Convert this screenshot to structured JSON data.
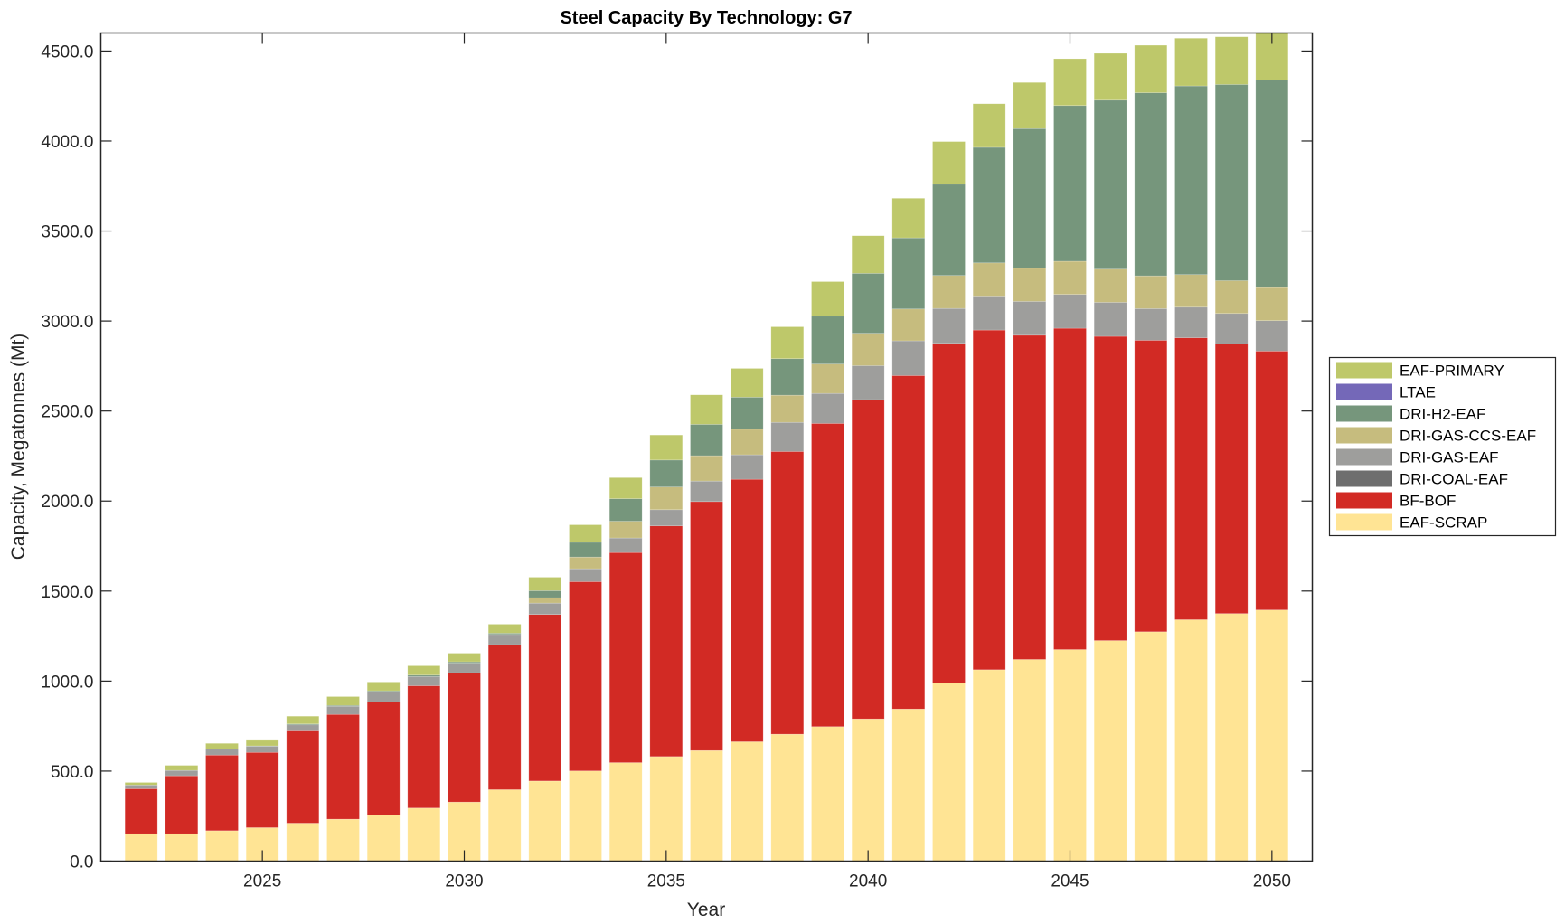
{
  "chart_data": {
    "type": "bar",
    "stacked": true,
    "title": "Steel Capacity By Technology: G7",
    "xlabel": "Year",
    "ylabel": "Capacity, Megatonnes (Mt)",
    "xlim": [
      2021,
      2051
    ],
    "ylim": [
      0,
      4600
    ],
    "xticks": [
      2025,
      2030,
      2035,
      2040,
      2045,
      2050
    ],
    "xtick_labels": [
      "2025",
      "2030",
      "2035",
      "2040",
      "2045",
      "2050"
    ],
    "yticks": [
      0,
      500,
      1000,
      1500,
      2000,
      2500,
      3000,
      3500,
      4000,
      4500
    ],
    "ytick_labels": [
      "0.0",
      "500.0",
      "1000.0",
      "1500.0",
      "2000.0",
      "2500.0",
      "3000.0",
      "3500.0",
      "4000.0",
      "4500.0"
    ],
    "grid": false,
    "legend_position": "right-outside",
    "categories": [
      2022,
      2023,
      2024,
      2025,
      2026,
      2027,
      2028,
      2029,
      2030,
      2031,
      2032,
      2033,
      2034,
      2035,
      2036,
      2037,
      2038,
      2039,
      2040,
      2041,
      2042,
      2043,
      2044,
      2045,
      2046,
      2047,
      2048,
      2049,
      2050
    ],
    "series": [
      {
        "name": "EAF-SCRAP",
        "color": "#FFE494",
        "values": [
          152,
          152,
          169,
          186,
          211,
          233,
          255,
          295,
          328,
          397,
          445,
          501,
          547,
          581,
          614,
          663,
          705,
          747,
          790,
          845,
          989,
          1063,
          1120,
          1175,
          1225,
          1274,
          1341,
          1375,
          1395
        ]
      },
      {
        "name": "BF-BOF",
        "color": "#D22A24",
        "values": [
          250,
          322,
          420,
          418,
          512,
          582,
          629,
          679,
          718,
          805,
          925,
          1051,
          1167,
          1281,
          1383,
          1458,
          1570,
          1684,
          1773,
          1852,
          1887,
          1887,
          1801,
          1785,
          1690,
          1619,
          1566,
          1498,
          1438
        ]
      },
      {
        "name": "DRI-COAL-EAF",
        "color": "#6E6E6E",
        "values": [
          0,
          0,
          0,
          0,
          0,
          0,
          0,
          0,
          0,
          0,
          0,
          0,
          0,
          0,
          0,
          0,
          0,
          0,
          0,
          0,
          0,
          0,
          0,
          0,
          0,
          0,
          0,
          0,
          0
        ]
      },
      {
        "name": "DRI-GAS-EAF",
        "color": "#9E9E9C",
        "values": [
          21,
          30,
          34,
          34,
          34,
          45,
          57,
          51,
          54,
          57,
          63,
          72,
          81,
          90,
          114,
          136,
          162,
          167,
          189,
          193,
          194,
          189,
          188,
          188,
          189,
          176,
          170,
          169,
          169
        ]
      },
      {
        "name": "DRI-GAS-CCS-EAF",
        "color": "#C6BC7E",
        "values": [
          0,
          0,
          0,
          0,
          0,
          0,
          0,
          0,
          0,
          0,
          30,
          65,
          93,
          126,
          141,
          142,
          151,
          163,
          180,
          177,
          183,
          184,
          184,
          184,
          184,
          182,
          181,
          182,
          184
        ]
      },
      {
        "name": "DRI-H2-EAF",
        "color": "#76967C",
        "values": [
          0,
          0,
          0,
          2,
          5,
          5,
          5,
          8,
          7,
          7,
          39,
          82,
          125,
          150,
          174,
          178,
          203,
          266,
          333,
          395,
          507,
          642,
          776,
          865,
          939,
          1017,
          1048,
          1090,
          1152
        ]
      },
      {
        "name": "LTAE",
        "color": "#7468B8",
        "values": [
          0,
          0,
          0,
          0,
          0,
          0,
          0,
          0,
          0,
          0,
          0,
          0,
          0,
          0,
          0,
          0,
          0,
          0,
          0,
          0,
          0,
          0,
          0,
          0,
          0,
          0,
          0,
          0,
          0
        ]
      },
      {
        "name": "EAF-PRIMARY",
        "color": "#BEC86A",
        "values": [
          14,
          28,
          31,
          31,
          43,
          49,
          49,
          52,
          48,
          50,
          75,
          97,
          117,
          139,
          164,
          160,
          177,
          192,
          209,
          220,
          237,
          242,
          256,
          260,
          260,
          264,
          265,
          265,
          262
        ]
      }
    ],
    "legend": [
      {
        "label": "EAF-PRIMARY",
        "color": "#BEC86A"
      },
      {
        "label": "LTAE",
        "color": "#7468B8"
      },
      {
        "label": "DRI-H2-EAF",
        "color": "#76967C"
      },
      {
        "label": "DRI-GAS-CCS-EAF",
        "color": "#C6BC7E"
      },
      {
        "label": "DRI-GAS-EAF",
        "color": "#9E9E9C"
      },
      {
        "label": "DRI-COAL-EAF",
        "color": "#6E6E6E"
      },
      {
        "label": "BF-BOF",
        "color": "#D22A24"
      },
      {
        "label": "EAF-SCRAP",
        "color": "#FFE494"
      }
    ]
  }
}
